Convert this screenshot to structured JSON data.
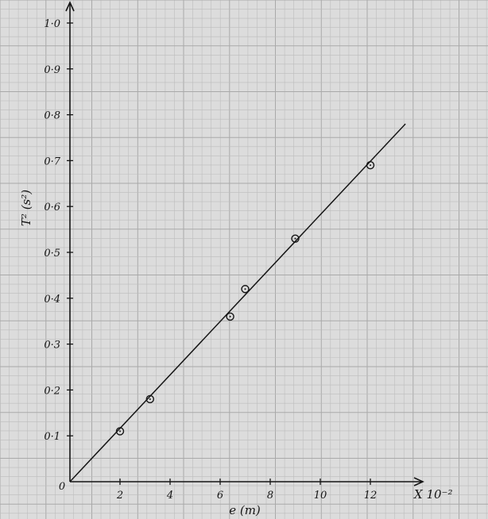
{
  "chart_data": {
    "type": "scatter",
    "title": "",
    "xlabel": "e (m)",
    "ylabel": "T² (s²)",
    "x_multiplier_label": "X 10⁻²",
    "origin_label": "0",
    "xlim": [
      0,
      14
    ],
    "ylim": [
      0,
      1.05
    ],
    "x_ticks": [
      2,
      4,
      6,
      8,
      10,
      12
    ],
    "x_tick_labels": [
      "2",
      "4",
      "6",
      "8",
      "10",
      "12"
    ],
    "y_ticks": [
      0.1,
      0.2,
      0.3,
      0.4,
      0.5,
      0.6,
      0.7,
      0.8,
      0.9,
      1.0
    ],
    "y_tick_labels": [
      "0·1",
      "0·2",
      "0·3",
      "0·4",
      "0·5",
      "0·6",
      "0·7",
      "0·8",
      "0·9",
      "1·0"
    ],
    "grid": true,
    "series": [
      {
        "x": [
          2.0,
          3.2,
          6.4,
          7.0,
          9.0,
          12.0
        ],
        "y": [
          0.11,
          0.18,
          0.36,
          0.42,
          0.53,
          0.69
        ],
        "marker": "circle"
      }
    ],
    "best_fit_line": {
      "x": [
        0,
        13.4
      ],
      "y": [
        0,
        0.78
      ]
    },
    "colors": {
      "paper": "#dcdcdc",
      "grid_minor": "#bdbdbd",
      "grid_major": "#a9a9a9",
      "ink": "#151515"
    }
  }
}
